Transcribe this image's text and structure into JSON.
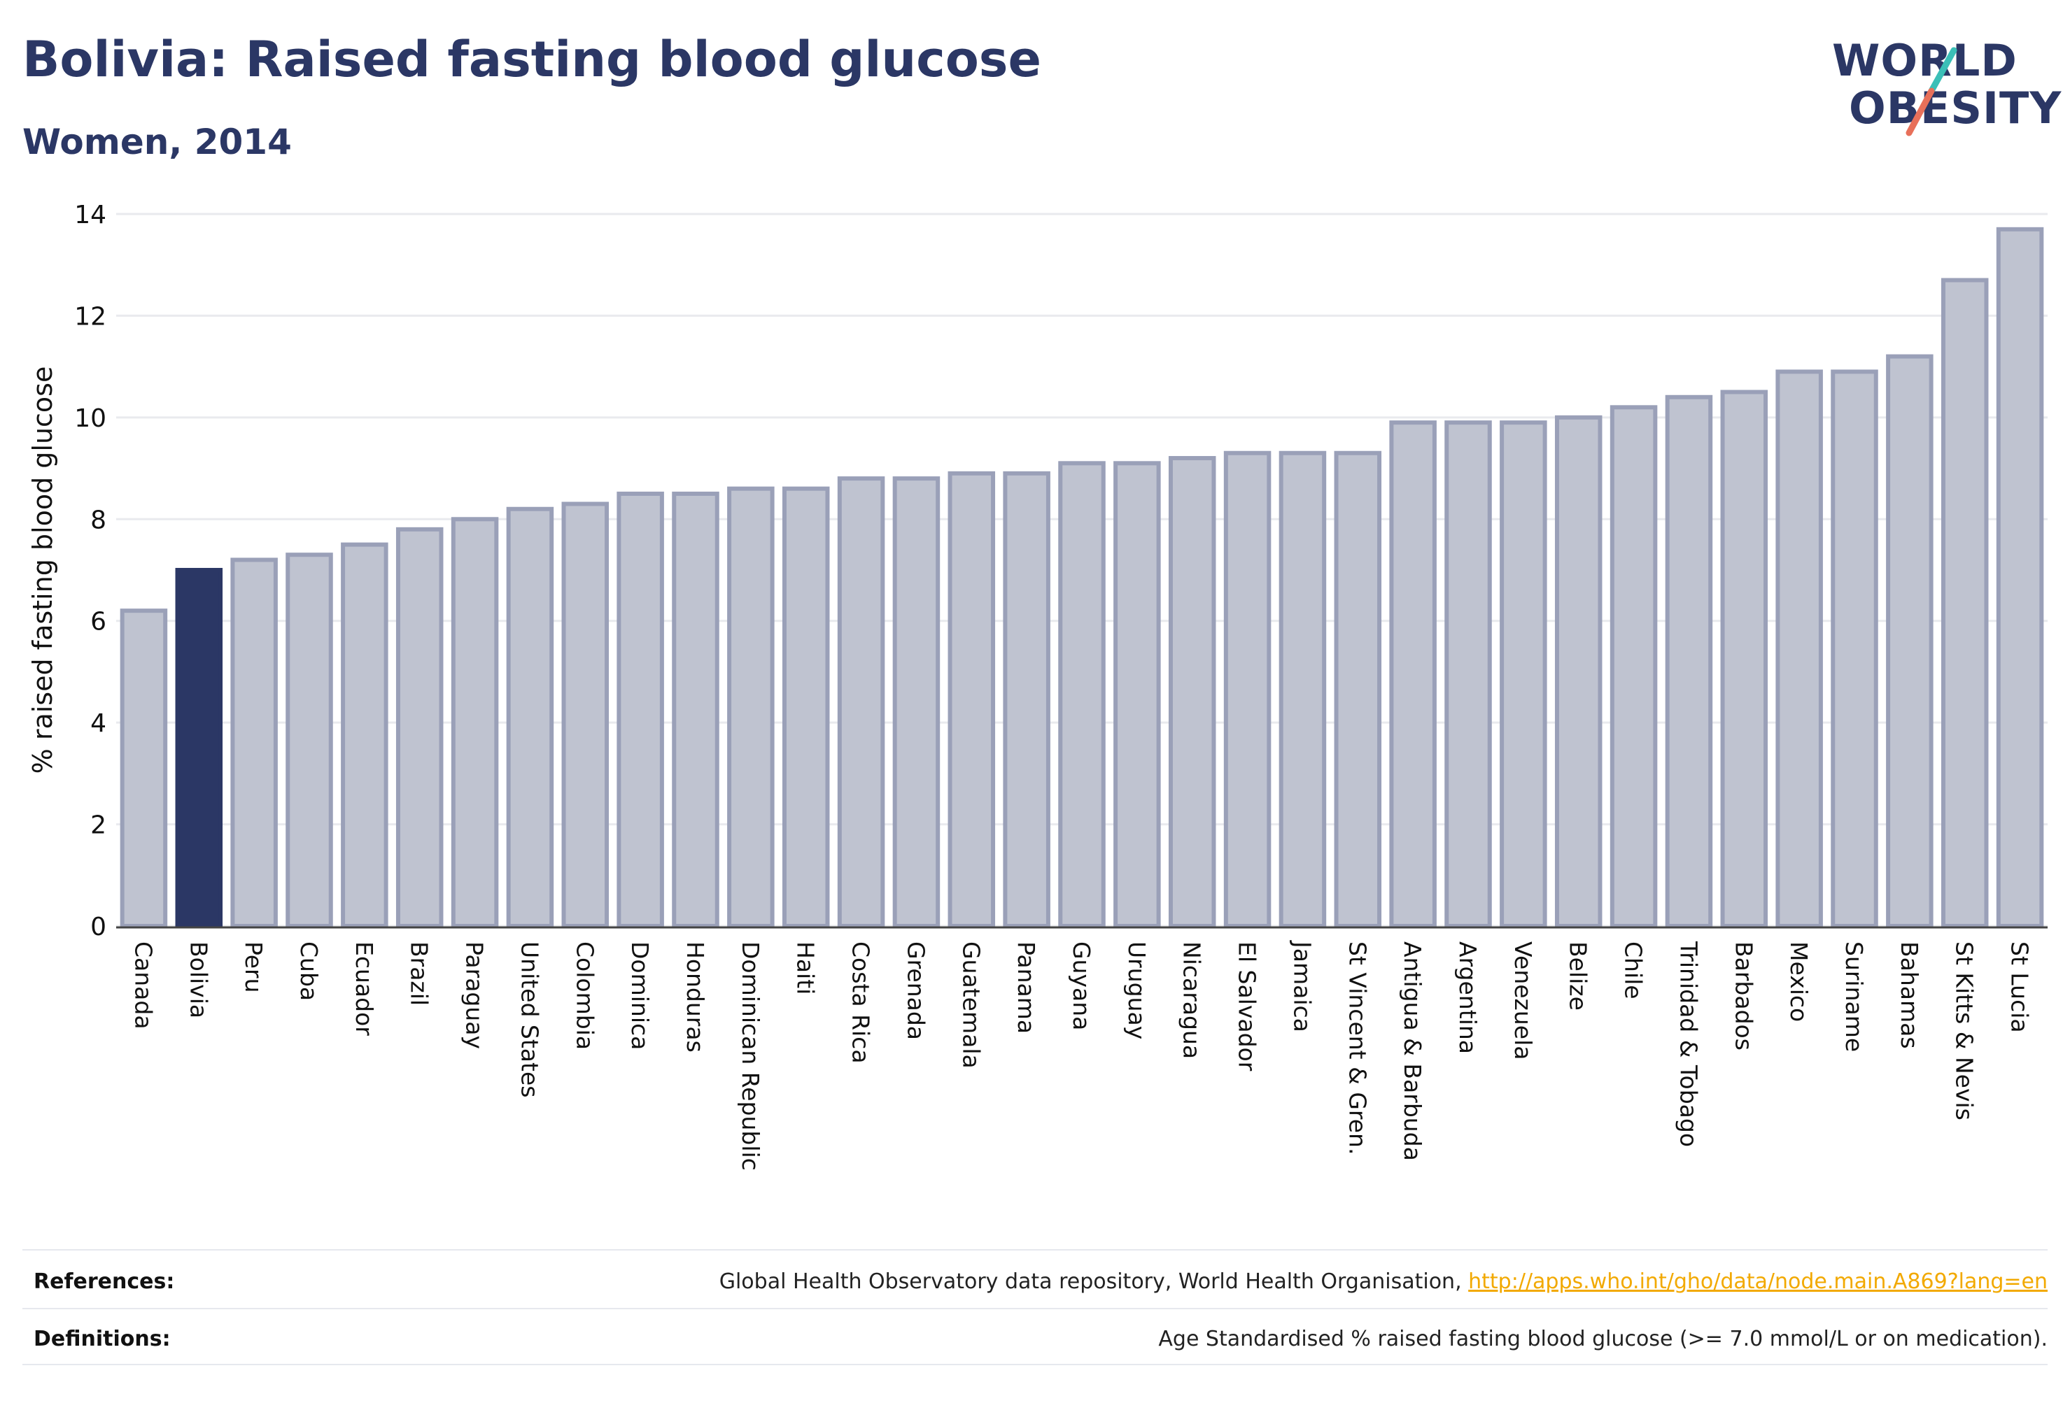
{
  "header": {
    "title": "Bolivia: Raised fasting blood glucose",
    "subtitle": "Women, 2014"
  },
  "logo": {
    "line1": "WORLD",
    "line2": "OBESITY",
    "colors": {
      "text": "#2b3765",
      "slash_top": "#3bbfb7",
      "slash_bottom": "#e8705a"
    }
  },
  "chart_data": {
    "type": "bar",
    "ylabel": "% raised fasting blood glucose",
    "xlabel": "",
    "ylim": [
      0,
      14
    ],
    "yticks": [
      0,
      2,
      4,
      6,
      8,
      10,
      12,
      14
    ],
    "grid": true,
    "highlight": "Bolivia",
    "colors": {
      "bar": "#bfc3d0",
      "bar_edge": "#9aa0b8",
      "highlight": "#2b3765"
    },
    "categories": [
      "Canada",
      "Bolivia",
      "Peru",
      "Cuba",
      "Ecuador",
      "Brazil",
      "Paraguay",
      "United States",
      "Colombia",
      "Dominica",
      "Honduras",
      "Dominican Republic",
      "Haiti",
      "Costa Rica",
      "Grenada",
      "Guatemala",
      "Panama",
      "Guyana",
      "Uruguay",
      "Nicaragua",
      "El Salvador",
      "Jamaica",
      "St Vincent & Gren.",
      "Antigua & Barbuda",
      "Argentina",
      "Venezuela",
      "Belize",
      "Chile",
      "Trinidad & Tobago",
      "Barbados",
      "Mexico",
      "Suriname",
      "Bahamas",
      "St Kitts & Nevis",
      "St Lucia"
    ],
    "values": [
      6.2,
      7.0,
      7.2,
      7.3,
      7.5,
      7.8,
      8.0,
      8.2,
      8.3,
      8.5,
      8.5,
      8.6,
      8.6,
      8.8,
      8.8,
      8.9,
      8.9,
      9.1,
      9.1,
      9.2,
      9.3,
      9.3,
      9.3,
      9.9,
      9.9,
      9.9,
      10.0,
      10.2,
      10.4,
      10.5,
      10.9,
      10.9,
      11.2,
      12.7,
      13.7
    ]
  },
  "footer": {
    "references_label": "References:",
    "references_text": "Global Health Observatory data repository, World Health Organisation, ",
    "references_link": "http://apps.who.int/gho/data/node.main.A869?lang=en",
    "definitions_label": "Definitions:",
    "definitions_text": "Age Standardised % raised fasting blood glucose (>= 7.0 mmol/L or on medication)."
  }
}
